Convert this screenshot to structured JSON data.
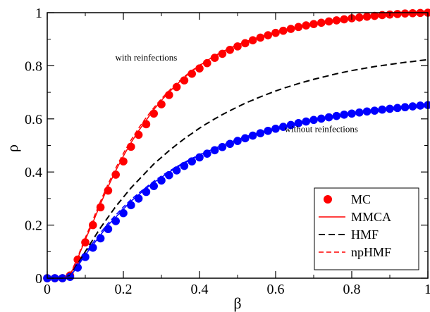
{
  "chart_data": {
    "type": "line",
    "xlabel": "β",
    "ylabel": "ρ",
    "xlim": [
      0,
      1
    ],
    "ylim": [
      0,
      1
    ],
    "xticks": [
      0,
      0.2,
      0.4,
      0.6,
      0.8,
      1
    ],
    "yticks": [
      0,
      0.2,
      0.4,
      0.6,
      0.8,
      1
    ],
    "xtick_labels": [
      "0",
      "0.2",
      "0.4",
      "0.6",
      "0.8",
      "1"
    ],
    "ytick_labels": [
      "0",
      "0.2",
      "0.4",
      "0.6",
      "0.8",
      "1"
    ],
    "grid": false,
    "legend_position": "bottom-right",
    "legend": [
      {
        "label": "MC",
        "style": "marker",
        "color": "#ff0000"
      },
      {
        "label": "MMCA",
        "style": "solid",
        "color": "#ff0000"
      },
      {
        "label": "HMF",
        "style": "dashed",
        "color": "#000000"
      },
      {
        "label": "npHMF",
        "style": "dashed",
        "color": "#ff0000"
      }
    ],
    "annotations": [
      {
        "text": "with reinfections",
        "x": 0.26,
        "y": 0.82
      },
      {
        "text": "without reinfections",
        "x": 0.72,
        "y": 0.55
      }
    ],
    "x": [
      0,
      0.02,
      0.04,
      0.06,
      0.08,
      0.1,
      0.12,
      0.14,
      0.16,
      0.18,
      0.2,
      0.22,
      0.24,
      0.26,
      0.28,
      0.3,
      0.32,
      0.34,
      0.36,
      0.38,
      0.4,
      0.42,
      0.44,
      0.46,
      0.48,
      0.5,
      0.52,
      0.54,
      0.56,
      0.58,
      0.6,
      0.62,
      0.64,
      0.66,
      0.68,
      0.7,
      0.72,
      0.74,
      0.76,
      0.78,
      0.8,
      0.82,
      0.84,
      0.86,
      0.88,
      0.9,
      0.92,
      0.94,
      0.96,
      0.98,
      1
    ],
    "series": [
      {
        "name": "MC",
        "group": "with reinfections",
        "style": "marker",
        "color": "#ff0000",
        "values": [
          0,
          0,
          0,
          0.01,
          0.07,
          0.135,
          0.2,
          0.267,
          0.33,
          0.39,
          0.44,
          0.495,
          0.54,
          0.58,
          0.62,
          0.655,
          0.69,
          0.72,
          0.745,
          0.77,
          0.79,
          0.81,
          0.83,
          0.845,
          0.86,
          0.873,
          0.885,
          0.896,
          0.906,
          0.915,
          0.924,
          0.932,
          0.939,
          0.946,
          0.952,
          0.957,
          0.962,
          0.967,
          0.971,
          0.975,
          0.979,
          0.982,
          0.985,
          0.988,
          0.991,
          0.993,
          0.995,
          0.997,
          0.998,
          0.999,
          1.0
        ]
      },
      {
        "name": "MMCA",
        "group": "with reinfections",
        "style": "solid",
        "color": "#ff0000",
        "values": [
          0,
          0,
          0,
          0.01,
          0.075,
          0.145,
          0.21,
          0.28,
          0.345,
          0.405,
          0.46,
          0.51,
          0.555,
          0.595,
          0.635,
          0.67,
          0.7,
          0.73,
          0.755,
          0.78,
          0.8,
          0.82,
          0.837,
          0.852,
          0.866,
          0.879,
          0.89,
          0.9,
          0.91,
          0.919,
          0.927,
          0.934,
          0.941,
          0.947,
          0.953,
          0.958,
          0.963,
          0.967,
          0.971,
          0.975,
          0.978,
          0.981,
          0.984,
          0.987,
          0.989,
          0.991,
          0.993,
          0.995,
          0.997,
          0.998,
          1.0
        ]
      },
      {
        "name": "npHMF",
        "group": "with reinfections",
        "style": "dashed",
        "color": "#ff0000",
        "values": [
          0,
          0,
          0,
          0.012,
          0.08,
          0.152,
          0.22,
          0.29,
          0.355,
          0.415,
          0.47,
          0.52,
          0.565,
          0.605,
          0.642,
          0.676,
          0.706,
          0.734,
          0.759,
          0.782,
          0.802,
          0.821,
          0.838,
          0.853,
          0.867,
          0.879,
          0.89,
          0.9,
          0.91,
          0.919,
          0.927,
          0.934,
          0.941,
          0.947,
          0.953,
          0.958,
          0.963,
          0.967,
          0.971,
          0.975,
          0.978,
          0.981,
          0.984,
          0.987,
          0.989,
          0.991,
          0.993,
          0.995,
          0.997,
          0.998,
          1.0
        ]
      },
      {
        "name": "HMF",
        "group": "HMF",
        "style": "dashed",
        "color": "#000000",
        "values": [
          0,
          0,
          0,
          0.01,
          0.055,
          0.1,
          0.145,
          0.19,
          0.23,
          0.27,
          0.305,
          0.34,
          0.37,
          0.4,
          0.43,
          0.455,
          0.48,
          0.503,
          0.525,
          0.545,
          0.565,
          0.583,
          0.6,
          0.616,
          0.631,
          0.645,
          0.659,
          0.671,
          0.683,
          0.694,
          0.705,
          0.715,
          0.724,
          0.733,
          0.741,
          0.749,
          0.756,
          0.763,
          0.77,
          0.776,
          0.782,
          0.787,
          0.792,
          0.797,
          0.801,
          0.805,
          0.809,
          0.813,
          0.816,
          0.82,
          0.823
        ]
      },
      {
        "name": "MC",
        "group": "without reinfections",
        "style": "marker",
        "color": "#0000ff",
        "values": [
          0,
          0,
          0,
          0.005,
          0.04,
          0.08,
          0.115,
          0.15,
          0.185,
          0.215,
          0.245,
          0.275,
          0.3,
          0.325,
          0.347,
          0.368,
          0.388,
          0.406,
          0.423,
          0.44,
          0.455,
          0.469,
          0.482,
          0.494,
          0.506,
          0.517,
          0.527,
          0.537,
          0.546,
          0.555,
          0.563,
          0.57,
          0.577,
          0.584,
          0.59,
          0.596,
          0.601,
          0.606,
          0.611,
          0.616,
          0.62,
          0.624,
          0.628,
          0.631,
          0.635,
          0.638,
          0.641,
          0.644,
          0.647,
          0.65,
          0.652
        ]
      },
      {
        "name": "MMCA",
        "group": "without reinfections",
        "style": "solid",
        "color": "#0000ff",
        "values": [
          0,
          0,
          0,
          0.006,
          0.045,
          0.088,
          0.125,
          0.163,
          0.2,
          0.23,
          0.26,
          0.29,
          0.314,
          0.338,
          0.36,
          0.38,
          0.399,
          0.417,
          0.433,
          0.449,
          0.463,
          0.477,
          0.489,
          0.501,
          0.512,
          0.522,
          0.532,
          0.541,
          0.55,
          0.558,
          0.566,
          0.573,
          0.58,
          0.586,
          0.592,
          0.598,
          0.603,
          0.608,
          0.613,
          0.617,
          0.621,
          0.625,
          0.629,
          0.632,
          0.636,
          0.639,
          0.642,
          0.645,
          0.647,
          0.65,
          0.652
        ]
      },
      {
        "name": "npHMF",
        "group": "without reinfections",
        "style": "dashed",
        "color": "#0000ff",
        "values": [
          0,
          0,
          0,
          0.008,
          0.05,
          0.094,
          0.133,
          0.171,
          0.207,
          0.238,
          0.268,
          0.296,
          0.32,
          0.343,
          0.365,
          0.385,
          0.403,
          0.42,
          0.436,
          0.451,
          0.465,
          0.478,
          0.49,
          0.502,
          0.513,
          0.523,
          0.533,
          0.542,
          0.55,
          0.558,
          0.566,
          0.573,
          0.58,
          0.586,
          0.592,
          0.598,
          0.603,
          0.608,
          0.613,
          0.617,
          0.621,
          0.625,
          0.629,
          0.632,
          0.636,
          0.639,
          0.642,
          0.645,
          0.647,
          0.65,
          0.652
        ]
      }
    ]
  }
}
